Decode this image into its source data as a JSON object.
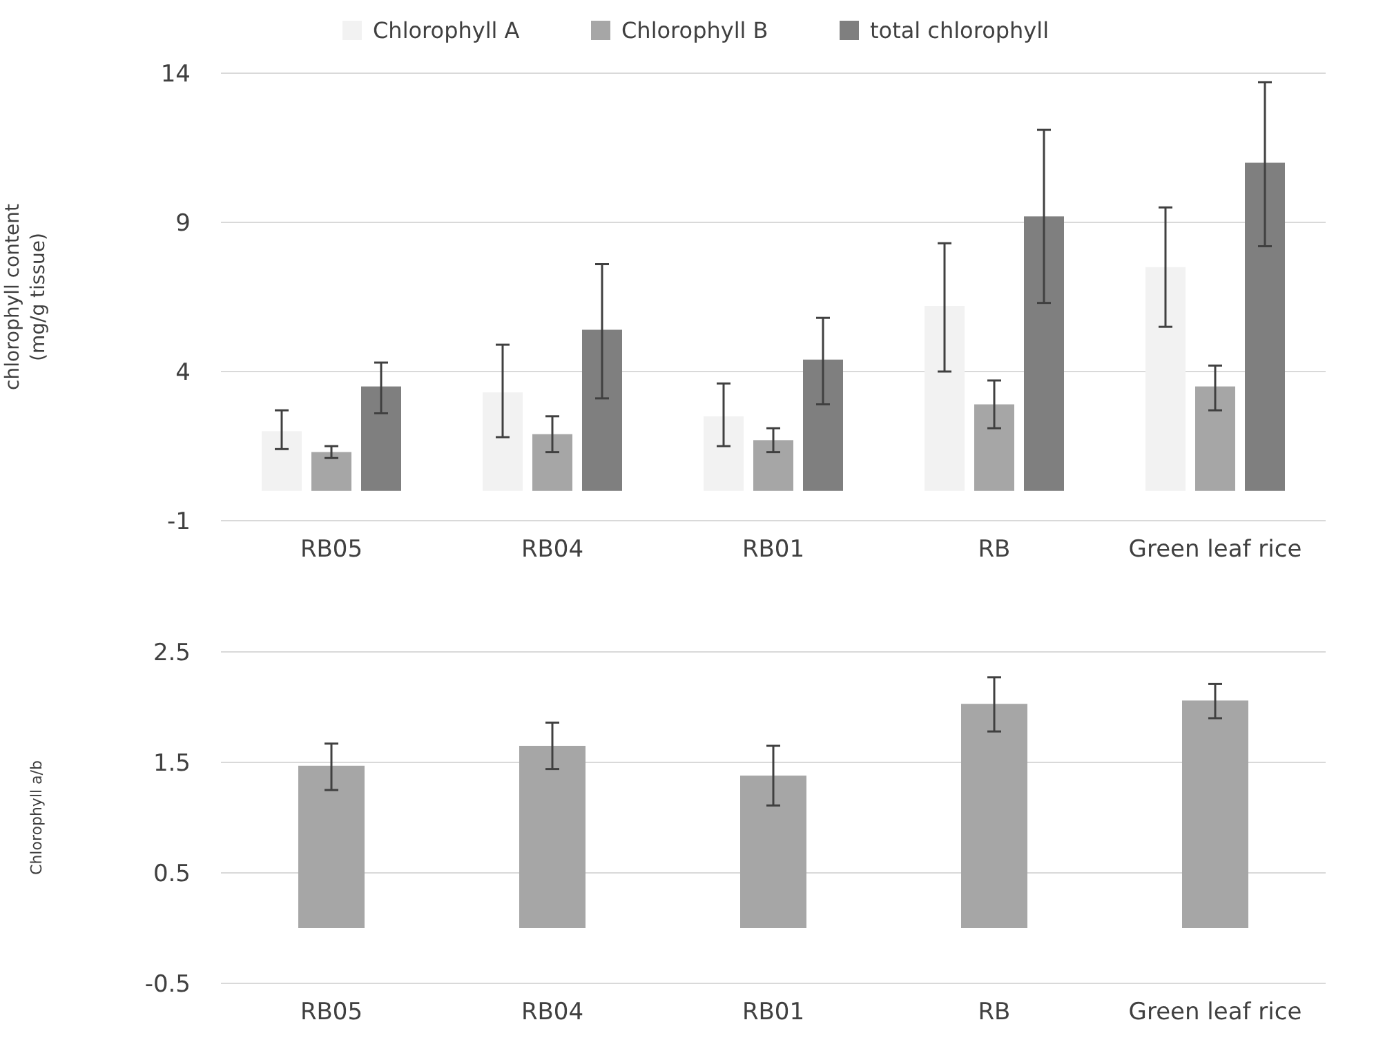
{
  "chart_data": [
    {
      "type": "bar",
      "ylabel": "chlorophyll content\n(mg/g tissue)",
      "categories": [
        "RB05",
        "RB04",
        "RB01",
        "RB",
        "Green leaf rice"
      ],
      "ylim": [
        -1,
        14
      ],
      "yticks": [
        -1,
        4,
        9,
        14
      ],
      "grid": "y",
      "legend": "top",
      "series": [
        {
          "name": "Chlorophyll A",
          "color": "#f2f2f2",
          "values": [
            2.0,
            3.3,
            2.5,
            6.2,
            7.5
          ],
          "errors": [
            [
              1.4,
              2.7
            ],
            [
              1.8,
              4.9
            ],
            [
              1.5,
              3.6
            ],
            [
              4.0,
              8.3
            ],
            [
              5.5,
              9.5
            ]
          ]
        },
        {
          "name": "Chlorophyll B",
          "color": "#a6a6a6",
          "values": [
            1.3,
            1.9,
            1.7,
            2.9,
            3.5
          ],
          "errors": [
            [
              1.1,
              1.5
            ],
            [
              1.3,
              2.5
            ],
            [
              1.3,
              2.1
            ],
            [
              2.1,
              3.7
            ],
            [
              2.7,
              4.2
            ]
          ]
        },
        {
          "name": "total chlorophyll",
          "color": "#7f7f7f",
          "values": [
            3.5,
            5.4,
            4.4,
            9.2,
            11.0
          ],
          "errors": [
            [
              2.6,
              4.3
            ],
            [
              3.1,
              7.6
            ],
            [
              2.9,
              5.8
            ],
            [
              6.3,
              12.1
            ],
            [
              8.2,
              13.7
            ]
          ]
        }
      ]
    },
    {
      "type": "bar",
      "ylabel": "Chlorophyll a/b",
      "categories": [
        "RB05",
        "RB04",
        "RB01",
        "RB",
        "Green leaf rice"
      ],
      "ylim": [
        -0.5,
        2.5
      ],
      "yticks": [
        -0.5,
        0.5,
        1.5,
        2.5
      ],
      "grid": "y",
      "legend": false,
      "series": [
        {
          "color": "#a6a6a6",
          "values": [
            1.47,
            1.65,
            1.38,
            2.03,
            2.06
          ],
          "errors": [
            [
              1.25,
              1.67
            ],
            [
              1.44,
              1.86
            ],
            [
              1.11,
              1.65
            ],
            [
              1.78,
              2.27
            ],
            [
              1.9,
              2.21
            ]
          ]
        }
      ]
    }
  ]
}
